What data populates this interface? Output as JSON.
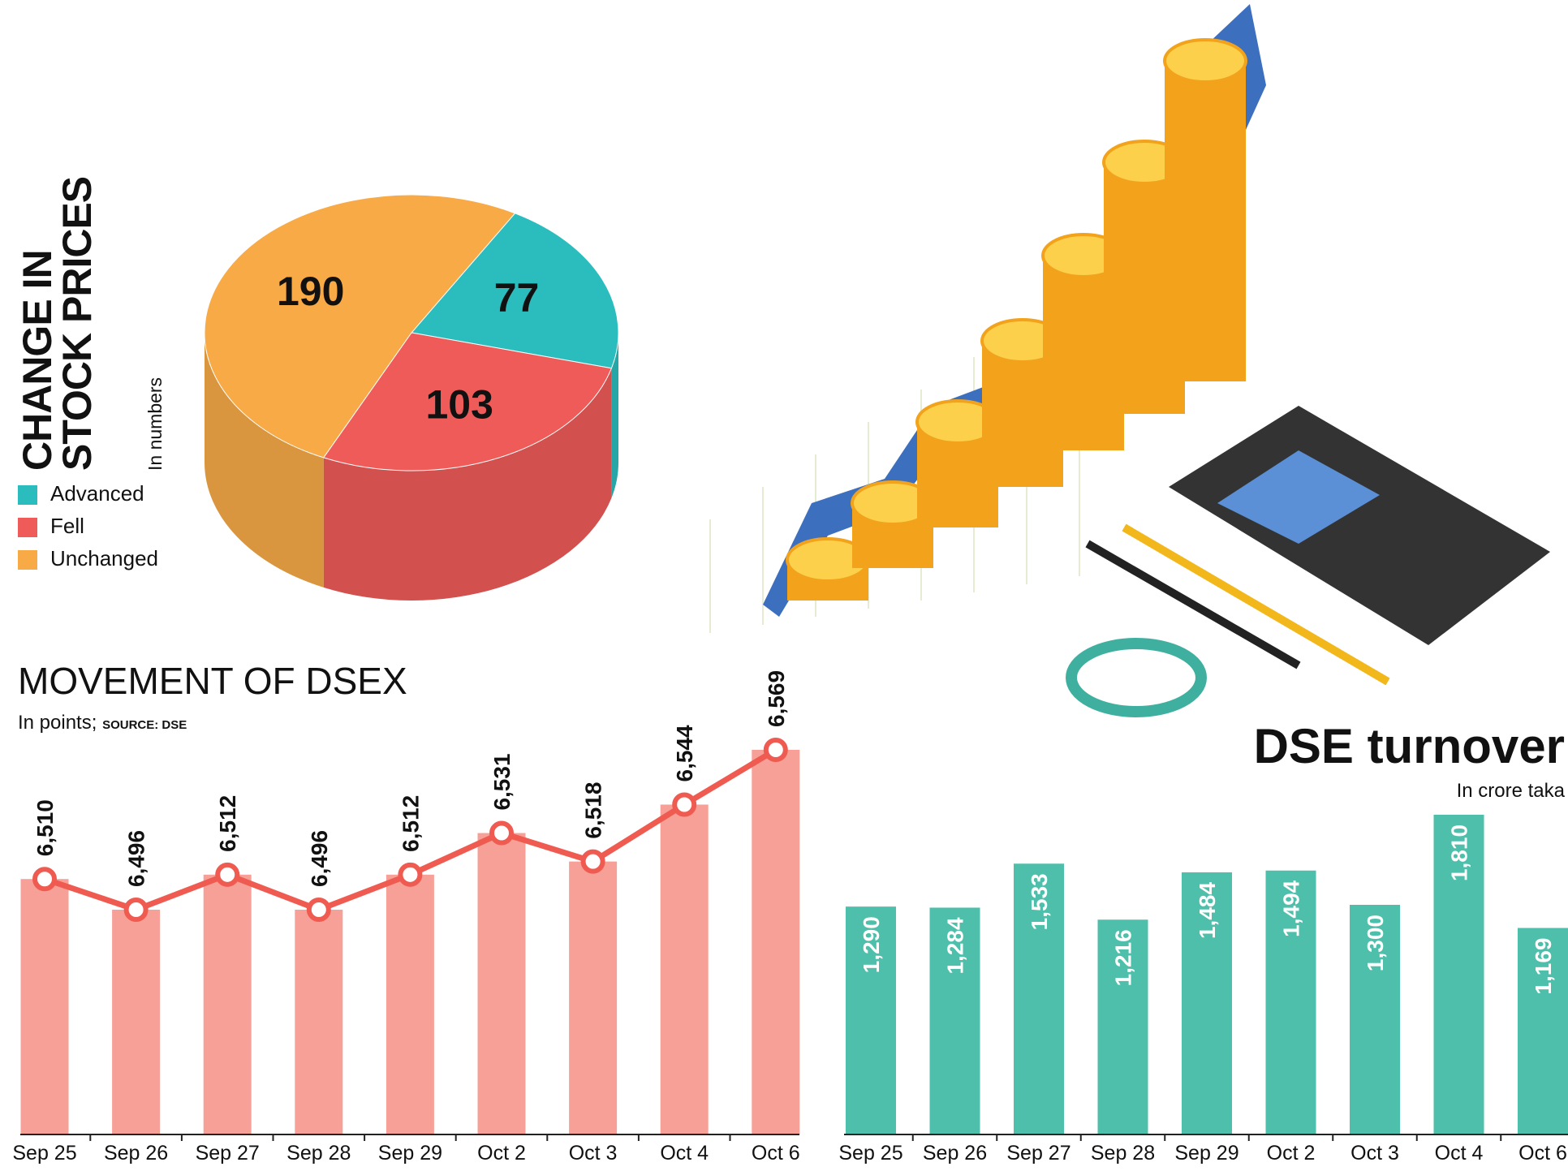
{
  "chart_data": [
    {
      "type": "pie",
      "title": "CHANGE IN STOCK PRICES",
      "subtitle": "In numbers",
      "categories": [
        "Advanced",
        "Fell",
        "Unchanged"
      ],
      "values": [
        77,
        103,
        190
      ],
      "colors": [
        "#2bbdbe",
        "#ef5b58",
        "#f7aa46"
      ]
    },
    {
      "type": "line",
      "title": "MOVEMENT OF DSEX",
      "subtitle": "In points;",
      "source": "SOURCE: DSE",
      "categories": [
        "Sep 25",
        "Sep 26",
        "Sep 27",
        "Sep 28",
        "Sep 29",
        "Oct 2",
        "Oct 3",
        "Oct 4",
        "Oct 6"
      ],
      "values": [
        6510,
        6496,
        6512,
        6496,
        6512,
        6531,
        6518,
        6544,
        6569
      ],
      "value_labels": [
        "6,510",
        "6,496",
        "6,512",
        "6,496",
        "6,512",
        "6,531",
        "6,518",
        "6,544",
        "6,569"
      ],
      "color": "#ef5b50",
      "bar_color": "#f7a097"
    },
    {
      "type": "bar",
      "title": "DSE turnover",
      "subtitle": "In crore taka",
      "categories": [
        "Sep 25",
        "Sep 26",
        "Sep 27",
        "Sep 28",
        "Sep 29",
        "Oct 2",
        "Oct 3",
        "Oct 4",
        "Oct 6"
      ],
      "values": [
        1290,
        1284,
        1533,
        1216,
        1484,
        1494,
        1300,
        1810,
        1169
      ],
      "value_labels": [
        "1,290",
        "1,284",
        "1,533",
        "1,216",
        "1,484",
        "1,494",
        "1,300",
        "1,810",
        "1,169"
      ],
      "color": "#4dbfaa"
    }
  ]
}
